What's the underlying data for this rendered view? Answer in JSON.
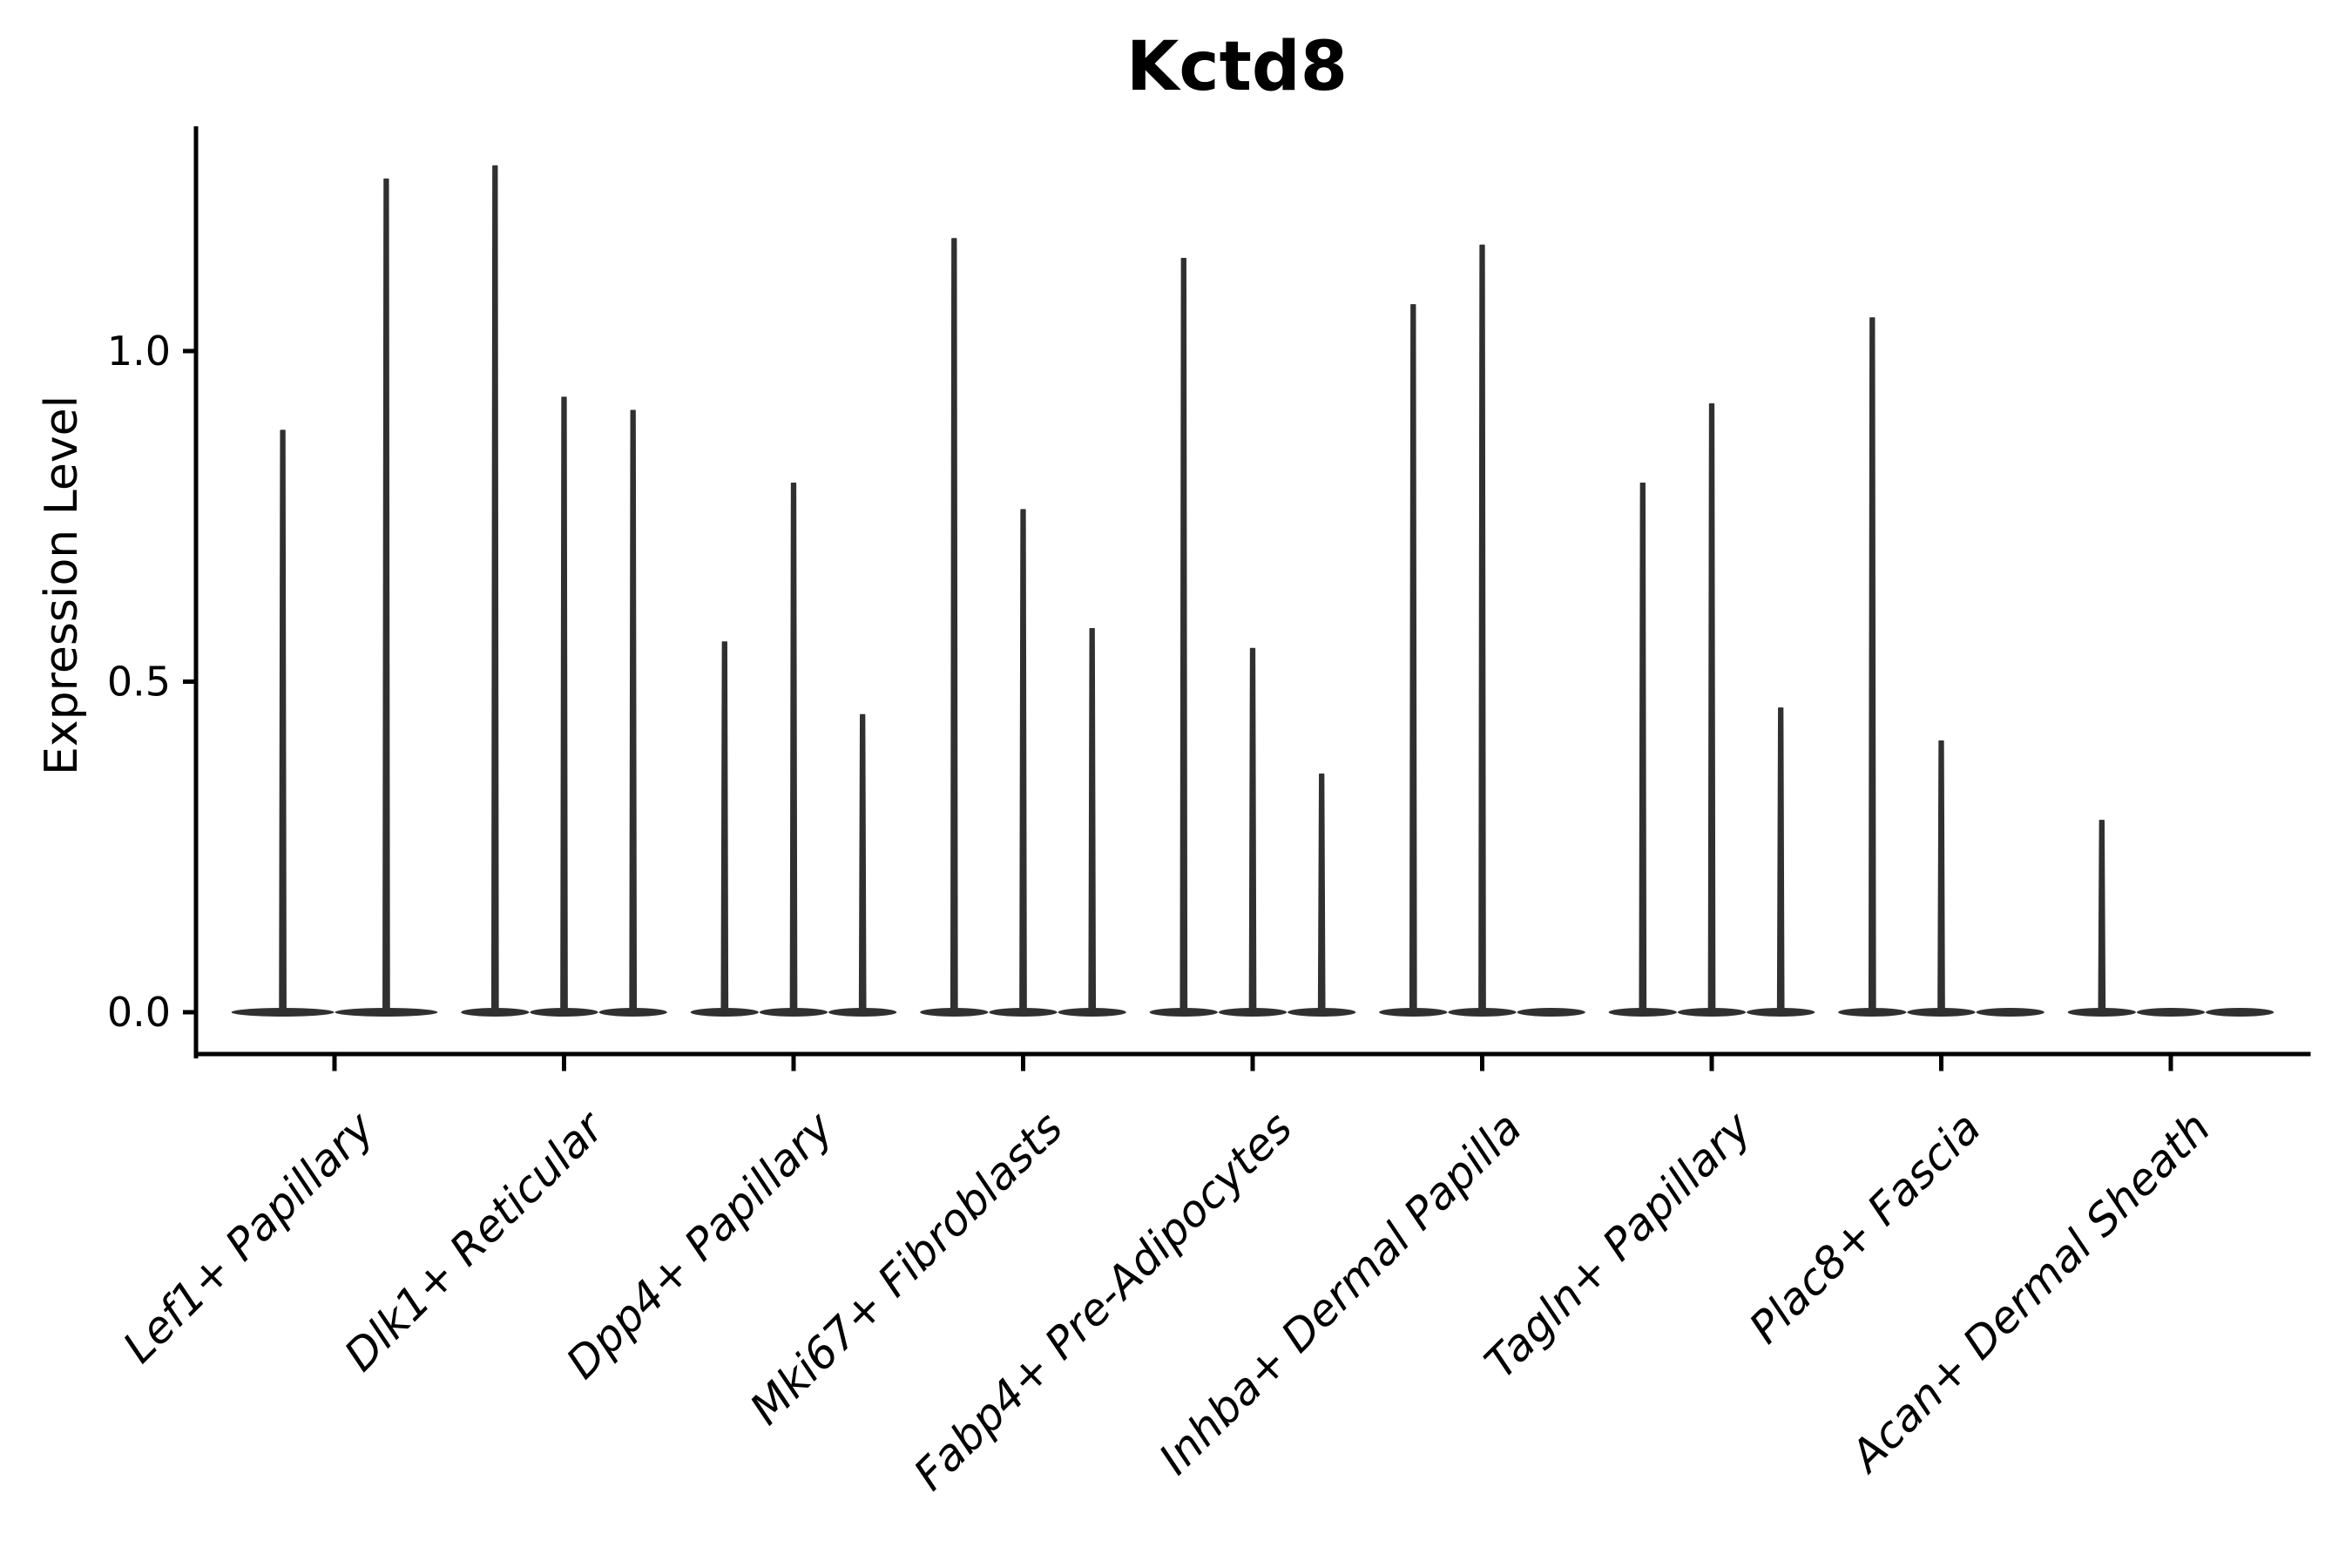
{
  "chart_data": {
    "type": "violin",
    "title": "Kctd8",
    "ylabel": "Expression Level",
    "xlabel": "",
    "yticks": [
      0.0,
      0.5,
      1.0
    ],
    "ytick_labels": [
      "0.0",
      "0.5",
      "1.0"
    ],
    "ylim": [
      0.0,
      1.34
    ],
    "grid": "off",
    "legend": "none",
    "description": "Stacked-violin style expression plot; each category holds up to 3 very thin violins whose bulk sits at 0 with a narrow spike rising to the max expression value.",
    "categories": [
      "Lef1+ Papillary",
      "Dlk1+ Reticular",
      "Dpp4+ Papillary",
      "Mki67+ Fibroblasts",
      "Fabp4+ Pre-Adipocytes",
      "Inhba+ Dermal Papilla",
      "Tagln+ Papillary",
      "Plac8+ Fascia",
      "Acan+ Dermal Sheath"
    ],
    "violins": [
      {
        "category": "Lef1+ Papillary",
        "spike_max_values": [
          0.88,
          1.26
        ]
      },
      {
        "category": "Dlk1+ Reticular",
        "spike_max_values": [
          1.28,
          0.93,
          0.91
        ]
      },
      {
        "category": "Dpp4+ Papillary",
        "spike_max_values": [
          0.56,
          0.8,
          0.45
        ]
      },
      {
        "category": "Mki67+ Fibroblasts",
        "spike_max_values": [
          1.17,
          0.76,
          0.58
        ]
      },
      {
        "category": "Fabp4+ Pre-Adipocytes",
        "spike_max_values": [
          1.14,
          0.55,
          0.36
        ]
      },
      {
        "category": "Inhba+ Dermal Papilla",
        "spike_max_values": [
          1.07,
          1.16,
          0.0
        ]
      },
      {
        "category": "Tagln+ Papillary",
        "spike_max_values": [
          0.8,
          0.92,
          0.46
        ]
      },
      {
        "category": "Plac8+ Fascia",
        "spike_max_values": [
          1.05,
          0.41,
          0.0
        ]
      },
      {
        "category": "Acan+ Dermal Sheath",
        "spike_max_values": [
          0.29,
          0.0,
          0.0
        ]
      }
    ],
    "colors": {
      "violin": "#303030",
      "axis": "#000000",
      "text": "#000000",
      "background": "#ffffff"
    }
  }
}
